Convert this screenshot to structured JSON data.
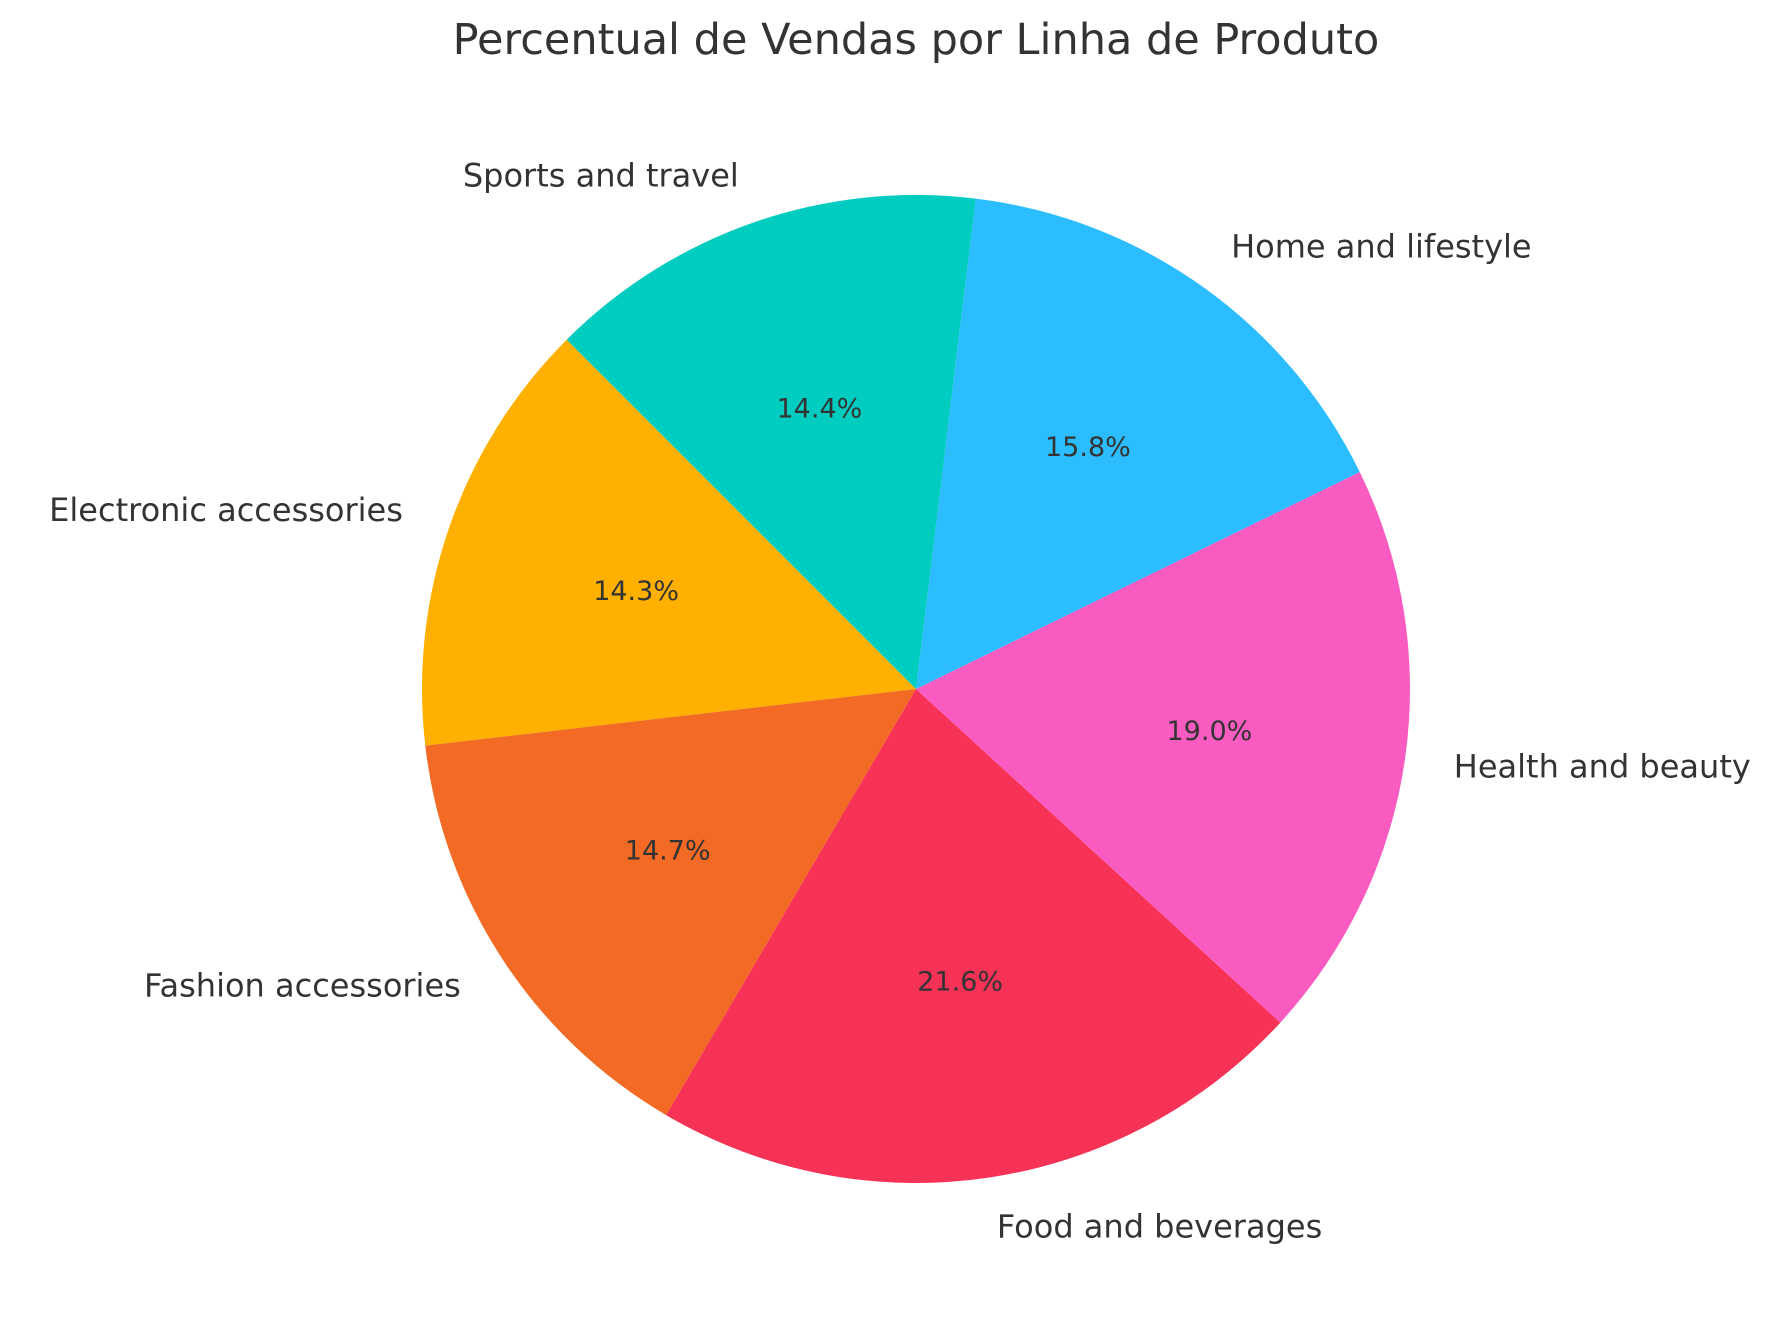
{
  "chart_data": {
    "type": "pie",
    "title": "Percentual de Vendas por Linha de Produto",
    "categories": [
      "Electronic accessories",
      "Fashion accessories",
      "Food and beverages",
      "Health and beauty",
      "Home and lifestyle",
      "Sports and travel"
    ],
    "values": [
      14.3,
      14.7,
      21.6,
      19.0,
      15.8,
      14.4
    ],
    "value_labels": [
      "14.3%",
      "14.7%",
      "21.6%",
      "19.0%",
      "15.8%",
      "14.4%"
    ],
    "colors": [
      "#FFB000",
      "#F26A24",
      "#F73257",
      "#F95BC1",
      "#2BBDFF",
      "#00CCBF"
    ],
    "start_angle_deg": 135,
    "direction": "counterclockwise",
    "legend": "none"
  }
}
